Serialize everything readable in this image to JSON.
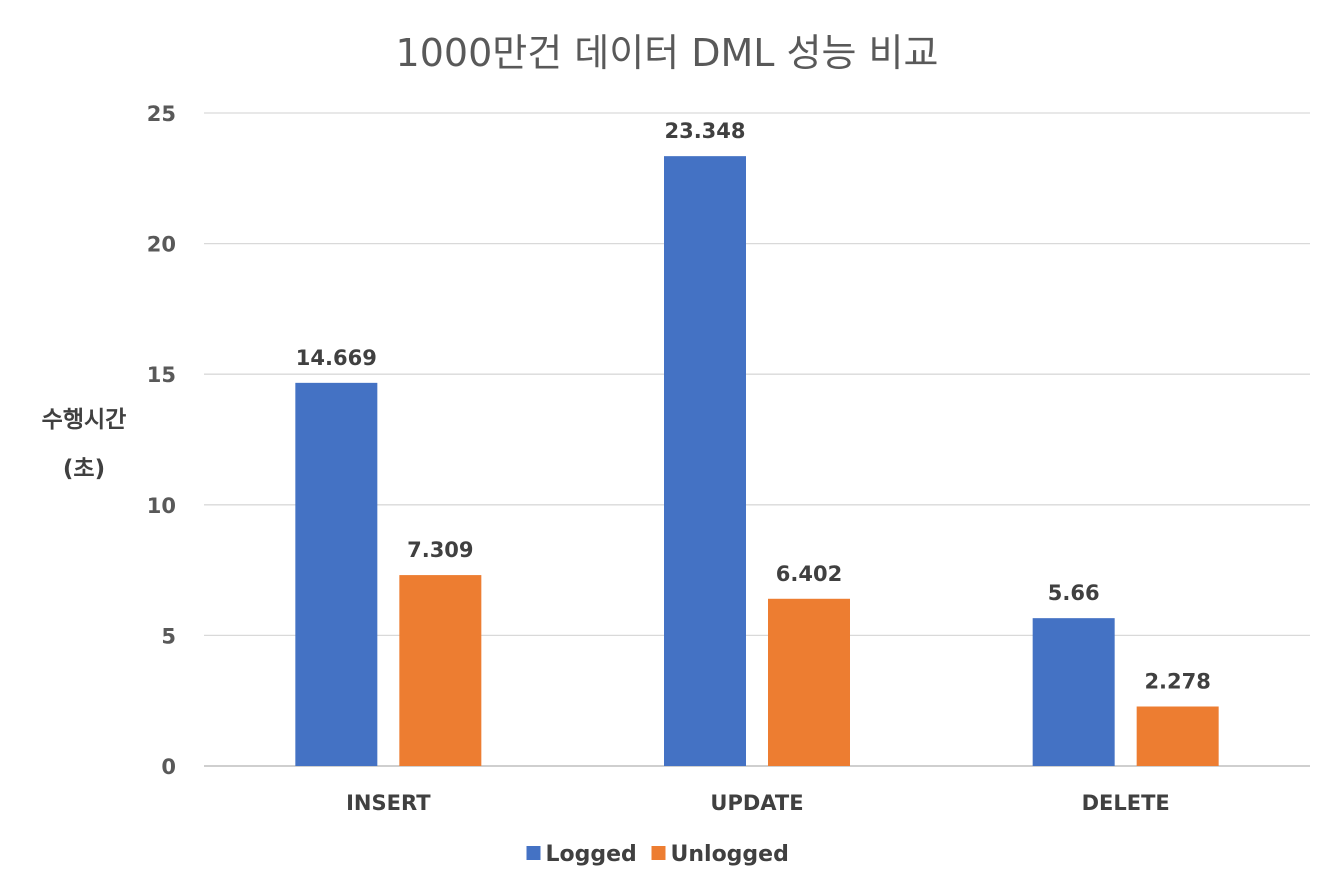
{
  "chart_data": {
    "type": "bar",
    "title": "1000만건 데이터 DML 성능 비교",
    "ylabel_lines": [
      "수행시간",
      "(초)"
    ],
    "xlabel": "",
    "categories": [
      "INSERT",
      "UPDATE",
      "DELETE"
    ],
    "series": [
      {
        "name": "Logged",
        "color": "#4472C4",
        "values": [
          14.669,
          23.348,
          5.66
        ]
      },
      {
        "name": "Unlogged",
        "color": "#ED7D31",
        "values": [
          7.309,
          6.402,
          2.278
        ]
      }
    ],
    "ylim": [
      0,
      25
    ],
    "yticks": [
      0,
      5,
      10,
      15,
      20,
      25
    ],
    "grid": true,
    "legend_position": "bottom"
  }
}
